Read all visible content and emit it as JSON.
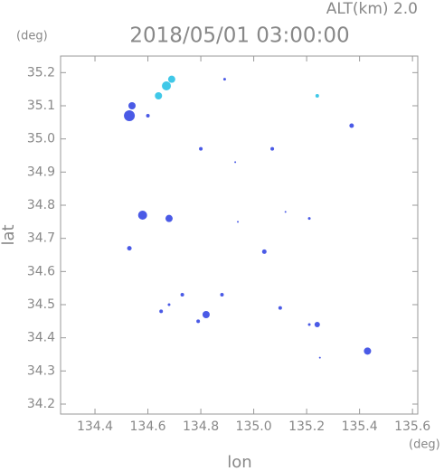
{
  "chart_data": {
    "type": "scatter",
    "title": "2018/05/01 03:00:00",
    "subtitle": "ALT(km) 2.0",
    "x_label": "lon",
    "y_label": "lat",
    "x_unit": "(deg)",
    "y_unit": "(deg)",
    "xlim": [
      134.27,
      135.62
    ],
    "ylim": [
      34.17,
      35.25
    ],
    "xticks": [
      134.4,
      134.6,
      134.8,
      {
        "value": 135,
        "label": "135.0"
      },
      135.2,
      135.4,
      135.6
    ],
    "yticks": [
      34.2,
      34.3,
      34.4,
      34.5,
      34.6,
      34.7,
      34.8,
      34.9,
      {
        "value": 35,
        "label": "35.0"
      },
      35.1,
      35.2
    ],
    "series": [
      {
        "color": "#4a5ae6",
        "x": [
          134.53,
          134.54,
          134.6,
          134.89,
          135.37,
          134.8,
          135.07,
          134.93,
          134.58,
          134.68,
          134.53,
          134.94,
          135.12,
          135.21,
          135.04,
          134.73,
          134.68,
          134.65,
          134.88,
          134.82,
          134.79,
          135.1,
          135.21,
          135.24,
          135.43,
          135.25
        ],
        "values": [
          35.07,
          35.1,
          35.07,
          35.18,
          35.04,
          34.97,
          34.97,
          34.93,
          34.77,
          34.76,
          34.67,
          34.75,
          34.78,
          34.76,
          34.66,
          34.53,
          34.5,
          34.48,
          34.53,
          34.47,
          34.45,
          34.49,
          34.44,
          34.44,
          34.36,
          34.34
        ]
      },
      {
        "color": "#40c8e8",
        "x": [
          134.64,
          134.67,
          134.69,
          135.24
        ],
        "values": [
          35.13,
          35.16,
          35.18,
          35.13
        ]
      }
    ],
    "sizes": [
      [
        6,
        4,
        2,
        1.5,
        2.5,
        2,
        2,
        1,
        5,
        4,
        2.5,
        1,
        1,
        1.5,
        2.5,
        2,
        1.5,
        2,
        2,
        4,
        2,
        2,
        1.5,
        3,
        4,
        1
      ],
      [
        4,
        5,
        4,
        2
      ]
    ]
  }
}
